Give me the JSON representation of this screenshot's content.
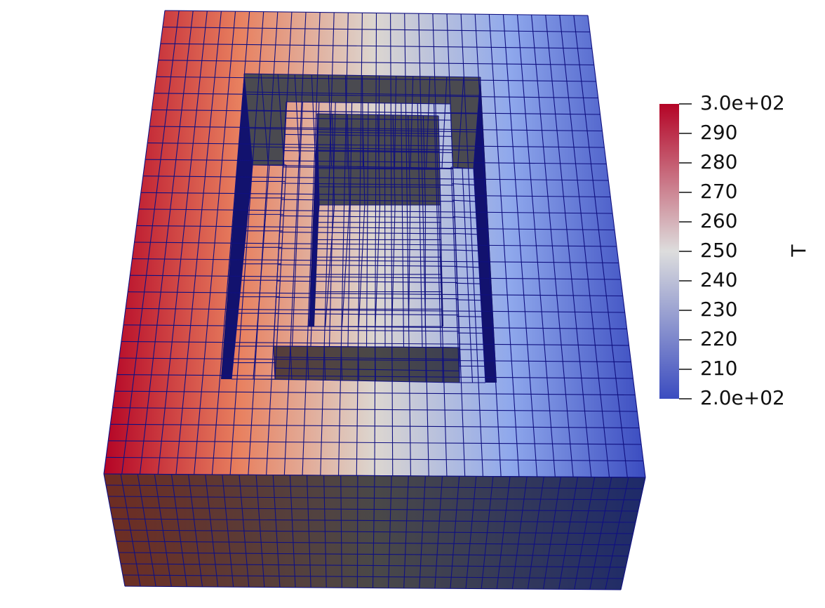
{
  "colorbar": {
    "title": "T",
    "lim": [
      {
        "value": 200,
        "label": "2.0e+02"
      },
      {
        "value": 300,
        "label": "3.0e+02"
      }
    ],
    "ticks": [
      290,
      280,
      270,
      260,
      250,
      240,
      230,
      220,
      210
    ],
    "colormap": [
      "#3b4cc0",
      "#dddddd",
      "#b40426"
    ]
  }
}
